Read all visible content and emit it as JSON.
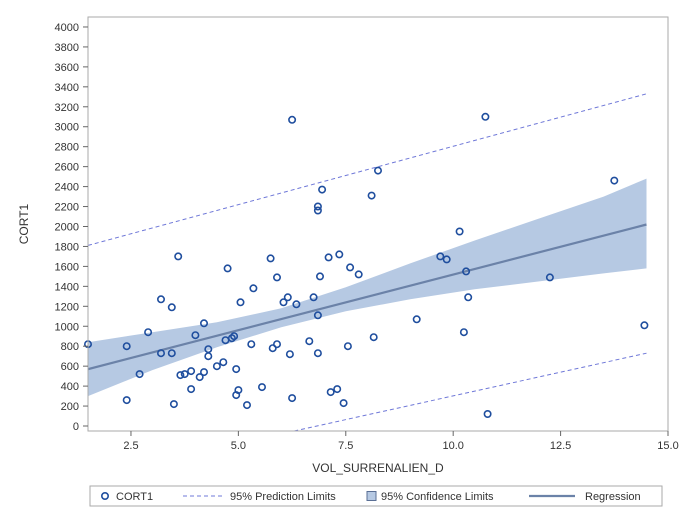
{
  "chart_data": {
    "type": "scatter",
    "title": "",
    "xlabel": "VOL_SURRENALIEN_D",
    "ylabel": "CORT1",
    "xlim": [
      1.5,
      15.0
    ],
    "ylim": [
      -50,
      4100
    ],
    "x_ticks": [
      2.5,
      5.0,
      7.5,
      10.0,
      12.5,
      15.0
    ],
    "x_tick_labels": [
      "2.5",
      "5.0",
      "7.5",
      "10.0",
      "12.5",
      "15.0"
    ],
    "y_ticks": [
      0,
      200,
      400,
      600,
      800,
      1000,
      1200,
      1400,
      1600,
      1800,
      2000,
      2200,
      2400,
      2600,
      2800,
      3000,
      3200,
      3400,
      3600,
      3800,
      4000
    ],
    "y_tick_labels": [
      "0",
      "200",
      "400",
      "600",
      "800",
      "1000",
      "1200",
      "1400",
      "1600",
      "1800",
      "2000",
      "2200",
      "2400",
      "2600",
      "2800",
      "3000",
      "3200",
      "3400",
      "3600",
      "3800",
      "4000"
    ],
    "grid": false,
    "legend_position": "bottom",
    "colors": {
      "points": "#1f4e9e",
      "confidence_band": "#b6c9e3",
      "regression": "#6b82a8",
      "prediction": "#6f78d8",
      "frame": "#aaaaaa"
    },
    "legend": [
      {
        "label": "CORT1",
        "kind": "marker"
      },
      {
        "label": "95% Prediction Limits",
        "kind": "dashed-line"
      },
      {
        "label": "95% Confidence Limits",
        "kind": "band"
      },
      {
        "label": "Regression",
        "kind": "line"
      }
    ],
    "regression": {
      "x": [
        1.5,
        14.5
      ],
      "y": [
        570,
        2020
      ]
    },
    "confidence_band": {
      "x": [
        1.5,
        3.0,
        4.5,
        6.0,
        7.5,
        9.0,
        10.5,
        12.0,
        13.5,
        14.5
      ],
      "lower": [
        300,
        560,
        790,
        990,
        1150,
        1270,
        1370,
        1450,
        1530,
        1580
      ],
      "upper": [
        840,
        940,
        1040,
        1180,
        1390,
        1630,
        1860,
        2080,
        2300,
        2480
      ]
    },
    "prediction_limits": {
      "upper": {
        "x": [
          1.5,
          14.5
        ],
        "y": [
          1810,
          3330
        ]
      },
      "lower": {
        "x": [
          6.3,
          14.5
        ],
        "y": [
          -50,
          730
        ]
      }
    },
    "series": [
      {
        "name": "CORT1",
        "points": [
          [
            1.5,
            820
          ],
          [
            2.4,
            800
          ],
          [
            2.4,
            260
          ],
          [
            2.7,
            520
          ],
          [
            2.9,
            940
          ],
          [
            3.2,
            1270
          ],
          [
            3.2,
            730
          ],
          [
            3.45,
            1190
          ],
          [
            3.45,
            730
          ],
          [
            3.5,
            220
          ],
          [
            3.6,
            1700
          ],
          [
            3.65,
            510
          ],
          [
            3.75,
            520
          ],
          [
            3.9,
            370
          ],
          [
            3.9,
            550
          ],
          [
            4.0,
            910
          ],
          [
            4.1,
            490
          ],
          [
            4.2,
            1030
          ],
          [
            4.2,
            540
          ],
          [
            4.3,
            770
          ],
          [
            4.3,
            700
          ],
          [
            4.5,
            600
          ],
          [
            4.65,
            640
          ],
          [
            4.7,
            860
          ],
          [
            4.75,
            1580
          ],
          [
            4.85,
            880
          ],
          [
            4.9,
            900
          ],
          [
            4.95,
            310
          ],
          [
            4.95,
            570
          ],
          [
            5.0,
            360
          ],
          [
            5.05,
            1240
          ],
          [
            5.2,
            210
          ],
          [
            5.3,
            820
          ],
          [
            5.35,
            1380
          ],
          [
            5.55,
            390
          ],
          [
            5.75,
            1680
          ],
          [
            5.8,
            780
          ],
          [
            5.9,
            1490
          ],
          [
            5.9,
            820
          ],
          [
            6.05,
            1240
          ],
          [
            6.15,
            1290
          ],
          [
            6.2,
            720
          ],
          [
            6.25,
            3070
          ],
          [
            6.25,
            280
          ],
          [
            6.35,
            1220
          ],
          [
            6.65,
            850
          ],
          [
            6.75,
            1290
          ],
          [
            6.85,
            2200
          ],
          [
            6.85,
            2160
          ],
          [
            6.85,
            1110
          ],
          [
            6.85,
            730
          ],
          [
            6.9,
            1500
          ],
          [
            6.95,
            2370
          ],
          [
            7.1,
            1690
          ],
          [
            7.15,
            340
          ],
          [
            7.3,
            370
          ],
          [
            7.35,
            1720
          ],
          [
            7.45,
            230
          ],
          [
            7.55,
            800
          ],
          [
            7.6,
            1590
          ],
          [
            7.8,
            1520
          ],
          [
            8.1,
            2310
          ],
          [
            8.15,
            890
          ],
          [
            8.25,
            2560
          ],
          [
            9.15,
            1070
          ],
          [
            9.7,
            1700
          ],
          [
            9.85,
            1670
          ],
          [
            10.15,
            1950
          ],
          [
            10.25,
            940
          ],
          [
            10.3,
            1550
          ],
          [
            10.35,
            1290
          ],
          [
            10.75,
            3100
          ],
          [
            10.8,
            120
          ],
          [
            12.25,
            1490
          ],
          [
            13.75,
            2460
          ],
          [
            14.45,
            1010
          ]
        ]
      }
    ]
  }
}
